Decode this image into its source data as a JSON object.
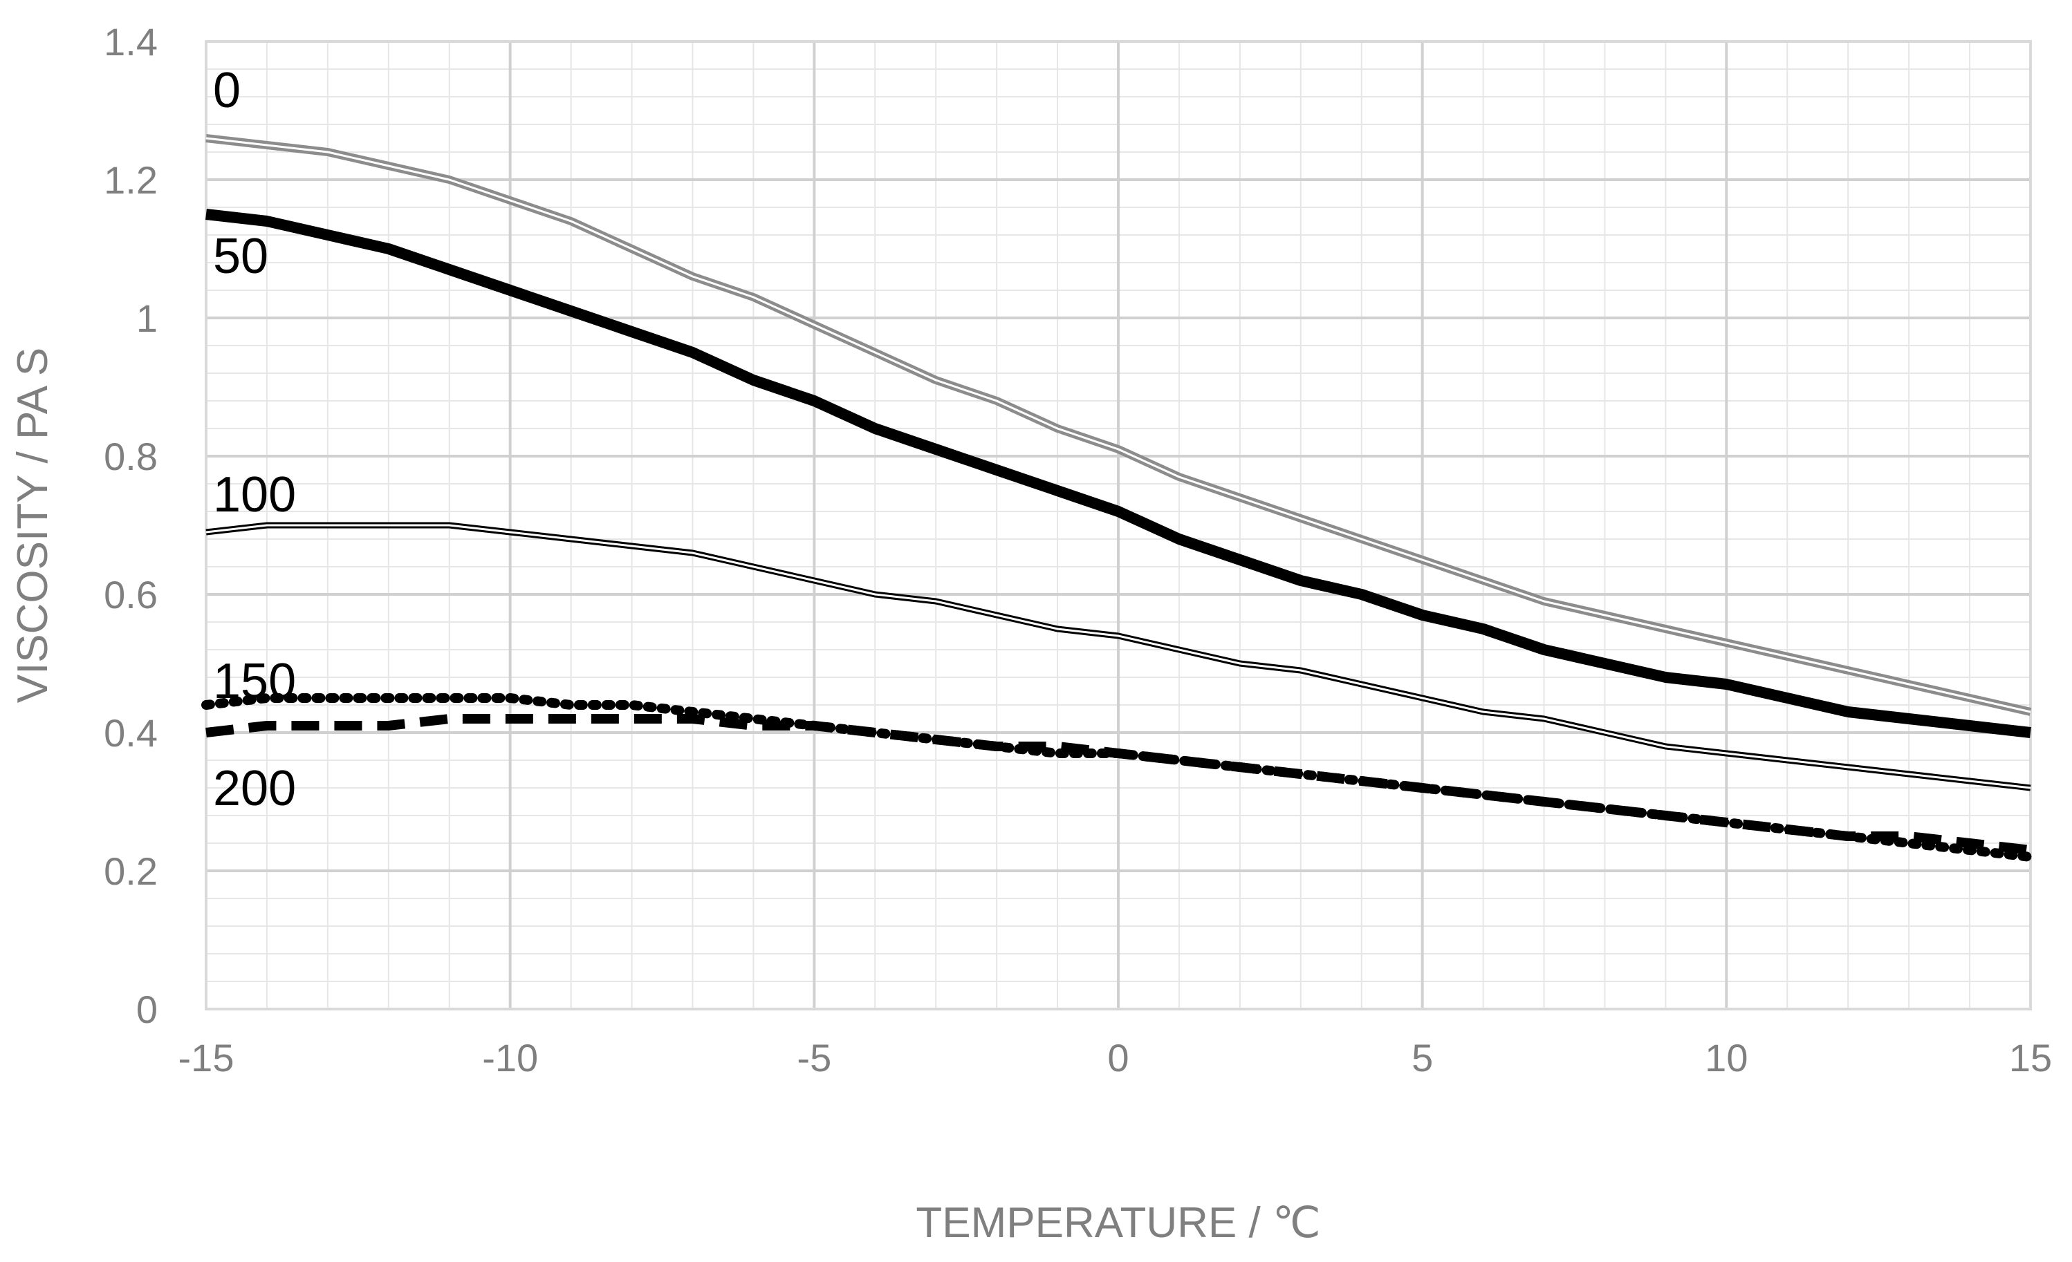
{
  "chart_data": {
    "type": "line",
    "title": "",
    "xlabel": "TEMPERATURE / ℃",
    "ylabel": "VISCOSITY / PA S",
    "xlim": [
      -15,
      15
    ],
    "ylim": [
      0,
      1.4
    ],
    "x_ticks": [
      "-15",
      "-10",
      "-5",
      "0",
      "5",
      "10",
      "15"
    ],
    "y_ticks": [
      "0",
      "0.2",
      "0.4",
      "0.6",
      "0.8",
      "1",
      "1.2",
      "1.4"
    ],
    "grid": true,
    "legend": "inline labels at left",
    "series": [
      {
        "name": "0",
        "color": "#8c8c8c",
        "style": "double-line",
        "x": [
          -15,
          -14,
          -13,
          -12,
          -11,
          -10,
          -9,
          -8,
          -7,
          -6,
          -5,
          -4,
          -3,
          -2,
          -1,
          0,
          1,
          2,
          3,
          4,
          5,
          6,
          7,
          8,
          9,
          10,
          11,
          12,
          13,
          14,
          15
        ],
        "y": [
          1.26,
          1.25,
          1.24,
          1.22,
          1.2,
          1.17,
          1.14,
          1.1,
          1.06,
          1.03,
          0.99,
          0.95,
          0.91,
          0.88,
          0.84,
          0.81,
          0.77,
          0.74,
          0.71,
          0.68,
          0.65,
          0.62,
          0.59,
          0.57,
          0.55,
          0.53,
          0.51,
          0.49,
          0.47,
          0.45,
          0.43
        ]
      },
      {
        "name": "50",
        "color": "#000000",
        "style": "solid-thick",
        "x": [
          -15,
          -14,
          -13,
          -12,
          -11,
          -10,
          -9,
          -8,
          -7,
          -6,
          -5,
          -4,
          -3,
          -2,
          -1,
          0,
          1,
          2,
          3,
          4,
          5,
          6,
          7,
          8,
          9,
          10,
          11,
          12,
          13,
          14,
          15
        ],
        "y": [
          1.15,
          1.14,
          1.12,
          1.1,
          1.07,
          1.04,
          1.01,
          0.98,
          0.95,
          0.91,
          0.88,
          0.84,
          0.81,
          0.78,
          0.75,
          0.72,
          0.68,
          0.65,
          0.62,
          0.6,
          0.57,
          0.55,
          0.52,
          0.5,
          0.48,
          0.47,
          0.45,
          0.43,
          0.42,
          0.41,
          0.4
        ]
      },
      {
        "name": "100",
        "color": "#000000",
        "style": "double-line-thin",
        "x": [
          -15,
          -14,
          -13,
          -12,
          -11,
          -10,
          -9,
          -8,
          -7,
          -6,
          -5,
          -4,
          -3,
          -2,
          -1,
          0,
          1,
          2,
          3,
          4,
          5,
          6,
          7,
          8,
          9,
          10,
          11,
          12,
          13,
          14,
          15
        ],
        "y": [
          0.69,
          0.7,
          0.7,
          0.7,
          0.7,
          0.69,
          0.68,
          0.67,
          0.66,
          0.64,
          0.62,
          0.6,
          0.59,
          0.57,
          0.55,
          0.54,
          0.52,
          0.5,
          0.49,
          0.47,
          0.45,
          0.43,
          0.42,
          0.4,
          0.38,
          0.37,
          0.36,
          0.35,
          0.34,
          0.33,
          0.32
        ]
      },
      {
        "name": "150",
        "color": "#000000",
        "style": "dotted-thick",
        "x": [
          -15,
          -14,
          -13,
          -12,
          -11,
          -10,
          -9,
          -8,
          -7,
          -6,
          -5,
          -4,
          -3,
          -2,
          -1,
          0,
          1,
          2,
          3,
          4,
          5,
          6,
          7,
          8,
          9,
          10,
          11,
          12,
          13,
          14,
          15
        ],
        "y": [
          0.44,
          0.45,
          0.45,
          0.45,
          0.45,
          0.45,
          0.44,
          0.44,
          0.43,
          0.42,
          0.41,
          0.4,
          0.39,
          0.38,
          0.37,
          0.37,
          0.36,
          0.35,
          0.34,
          0.33,
          0.32,
          0.31,
          0.3,
          0.29,
          0.28,
          0.27,
          0.26,
          0.25,
          0.24,
          0.23,
          0.22
        ]
      },
      {
        "name": "200",
        "color": "#000000",
        "style": "dashed-thick",
        "x": [
          -15,
          -14,
          -13,
          -12,
          -11,
          -10,
          -9,
          -8,
          -7,
          -6,
          -5,
          -4,
          -3,
          -2,
          -1,
          0,
          1,
          2,
          3,
          4,
          5,
          6,
          7,
          8,
          9,
          10,
          11,
          12,
          13,
          14,
          15
        ],
        "y": [
          0.4,
          0.41,
          0.41,
          0.41,
          0.42,
          0.42,
          0.42,
          0.42,
          0.42,
          0.41,
          0.41,
          0.4,
          0.39,
          0.38,
          0.38,
          0.37,
          0.36,
          0.35,
          0.34,
          0.33,
          0.32,
          0.31,
          0.3,
          0.29,
          0.28,
          0.27,
          0.26,
          0.25,
          0.25,
          0.24,
          0.23
        ]
      }
    ]
  }
}
